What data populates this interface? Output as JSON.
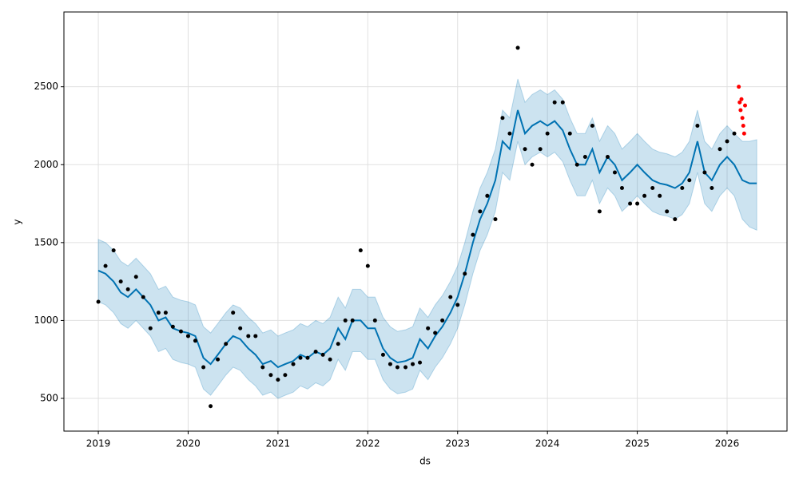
{
  "chart_data": {
    "type": "forecast",
    "x_label": "ds",
    "y_label": "y",
    "xlim": [
      2018.617,
      2026.667
    ],
    "ylim": [
      290,
      2980
    ],
    "xticks": [
      2019,
      2020,
      2021,
      2022,
      2023,
      2024,
      2025,
      2026
    ],
    "yticks": [
      500,
      1000,
      1500,
      2000,
      2500
    ],
    "grid": true,
    "forecast": {
      "color": "#0072b2",
      "band_color": "#0072b2",
      "x": [
        2019.0,
        2019.08,
        2019.17,
        2019.25,
        2019.33,
        2019.42,
        2019.5,
        2019.58,
        2019.67,
        2019.75,
        2019.83,
        2019.92,
        2020.0,
        2020.08,
        2020.17,
        2020.25,
        2020.33,
        2020.42,
        2020.5,
        2020.58,
        2020.67,
        2020.75,
        2020.83,
        2020.92,
        2021.0,
        2021.08,
        2021.17,
        2021.25,
        2021.33,
        2021.42,
        2021.5,
        2021.58,
        2021.67,
        2021.75,
        2021.83,
        2021.92,
        2022.0,
        2022.08,
        2022.17,
        2022.25,
        2022.33,
        2022.42,
        2022.5,
        2022.58,
        2022.67,
        2022.75,
        2022.83,
        2022.92,
        2023.0,
        2023.08,
        2023.17,
        2023.25,
        2023.33,
        2023.42,
        2023.5,
        2023.58,
        2023.67,
        2023.75,
        2023.83,
        2023.92,
        2024.0,
        2024.08,
        2024.17,
        2024.25,
        2024.33,
        2024.42,
        2024.5,
        2024.58,
        2024.67,
        2024.75,
        2024.83,
        2024.92,
        2025.0,
        2025.08,
        2025.17,
        2025.25,
        2025.33,
        2025.42,
        2025.5,
        2025.58,
        2025.67,
        2025.75,
        2025.83,
        2025.92,
        2026.0,
        2026.08,
        2026.17,
        2026.25,
        2026.33
      ],
      "values": [
        1320,
        1300,
        1250,
        1180,
        1150,
        1200,
        1150,
        1100,
        1000,
        1020,
        950,
        930,
        920,
        900,
        760,
        720,
        780,
        850,
        900,
        880,
        820,
        780,
        720,
        740,
        700,
        720,
        740,
        780,
        760,
        800,
        780,
        820,
        950,
        880,
        1000,
        1000,
        950,
        950,
        820,
        760,
        730,
        740,
        760,
        880,
        820,
        900,
        960,
        1050,
        1150,
        1300,
        1500,
        1650,
        1750,
        1900,
        2150,
        2100,
        2350,
        2200,
        2250,
        2280,
        2250,
        2280,
        2220,
        2100,
        2000,
        2000,
        2100,
        1950,
        2050,
        2000,
        1900,
        1950,
        2000,
        1950,
        1900,
        1880,
        1870,
        1850,
        1880,
        1950,
        2150,
        1950,
        1900,
        2000,
        2050,
        2000,
        1900,
        1880,
        1880
      ],
      "lower": [
        1120,
        1100,
        1050,
        980,
        950,
        1000,
        950,
        900,
        800,
        820,
        750,
        730,
        720,
        700,
        560,
        520,
        580,
        650,
        700,
        680,
        620,
        580,
        520,
        540,
        500,
        520,
        540,
        580,
        560,
        600,
        580,
        620,
        750,
        680,
        800,
        800,
        750,
        750,
        620,
        560,
        530,
        540,
        560,
        680,
        620,
        700,
        760,
        850,
        950,
        1100,
        1300,
        1450,
        1550,
        1700,
        1950,
        1900,
        2150,
        2000,
        2050,
        2080,
        2050,
        2080,
        2020,
        1900,
        1800,
        1800,
        1900,
        1750,
        1850,
        1800,
        1700,
        1750,
        1800,
        1750,
        1700,
        1680,
        1670,
        1650,
        1680,
        1750,
        1950,
        1750,
        1700,
        1800,
        1850,
        1800,
        1650,
        1600,
        1580
      ],
      "upper": [
        1520,
        1500,
        1450,
        1380,
        1350,
        1400,
        1350,
        1300,
        1200,
        1220,
        1150,
        1130,
        1120,
        1100,
        960,
        920,
        980,
        1050,
        1100,
        1080,
        1020,
        980,
        920,
        940,
        900,
        920,
        940,
        980,
        960,
        1000,
        980,
        1020,
        1150,
        1080,
        1200,
        1200,
        1150,
        1150,
        1020,
        960,
        930,
        940,
        960,
        1080,
        1020,
        1100,
        1160,
        1250,
        1350,
        1500,
        1700,
        1850,
        1950,
        2100,
        2350,
        2300,
        2550,
        2400,
        2450,
        2480,
        2450,
        2480,
        2420,
        2300,
        2200,
        2200,
        2300,
        2150,
        2250,
        2200,
        2100,
        2150,
        2200,
        2150,
        2100,
        2080,
        2070,
        2050,
        2080,
        2150,
        2350,
        2150,
        2100,
        2200,
        2250,
        2200,
        2150,
        2150,
        2160
      ]
    },
    "observed": {
      "color": "#000000",
      "x": [
        2019.0,
        2019.08,
        2019.17,
        2019.25,
        2019.33,
        2019.42,
        2019.5,
        2019.58,
        2019.67,
        2019.75,
        2019.83,
        2019.92,
        2020.0,
        2020.08,
        2020.17,
        2020.25,
        2020.33,
        2020.42,
        2020.5,
        2020.58,
        2020.67,
        2020.75,
        2020.83,
        2020.92,
        2021.0,
        2021.08,
        2021.17,
        2021.25,
        2021.33,
        2021.42,
        2021.5,
        2021.58,
        2021.67,
        2021.75,
        2021.83,
        2021.92,
        2022.0,
        2022.08,
        2022.17,
        2022.25,
        2022.33,
        2022.42,
        2022.5,
        2022.58,
        2022.67,
        2022.75,
        2022.83,
        2022.92,
        2023.0,
        2023.08,
        2023.17,
        2023.25,
        2023.33,
        2023.42,
        2023.5,
        2023.58,
        2023.67,
        2023.75,
        2023.83,
        2023.92,
        2024.0,
        2024.08,
        2024.17,
        2024.25,
        2024.33,
        2024.42,
        2024.5,
        2024.58,
        2024.67,
        2024.75,
        2024.83,
        2024.92,
        2025.0,
        2025.08,
        2025.17,
        2025.25,
        2025.33,
        2025.42,
        2025.5,
        2025.58,
        2025.67,
        2025.75,
        2025.83,
        2025.92,
        2026.0,
        2026.08
      ],
      "values": [
        1120,
        1350,
        1450,
        1250,
        1200,
        1280,
        1150,
        950,
        1050,
        1050,
        960,
        930,
        900,
        870,
        700,
        450,
        750,
        850,
        1050,
        950,
        900,
        900,
        700,
        650,
        620,
        650,
        720,
        760,
        760,
        800,
        780,
        750,
        850,
        1000,
        1000,
        1450,
        1350,
        1000,
        780,
        720,
        700,
        700,
        720,
        730,
        950,
        920,
        1000,
        1150,
        1100,
        1300,
        1550,
        1700,
        1800,
        1650,
        2300,
        2200,
        2750,
        2100,
        2000,
        2100,
        2200,
        2400,
        2400,
        2200,
        2000,
        2050,
        2250,
        1700,
        2050,
        1950,
        1850,
        1750,
        1750,
        1800,
        1850,
        1800,
        1700,
        1650,
        1850,
        1900,
        2250,
        1950,
        1850,
        2100,
        2150,
        2200
      ]
    },
    "actual_future": {
      "color": "#ff0000",
      "x": [
        2026.13,
        2026.14,
        2026.15,
        2026.16,
        2026.17,
        2026.18,
        2026.19,
        2026.2
      ],
      "values": [
        2500,
        2400,
        2350,
        2420,
        2300,
        2250,
        2200,
        2380
      ]
    }
  }
}
